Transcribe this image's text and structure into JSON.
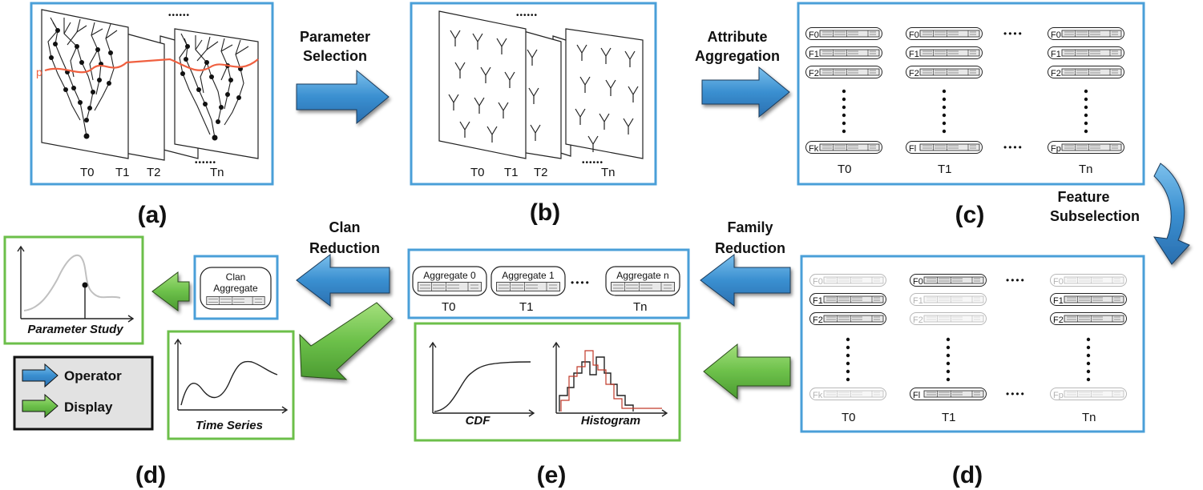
{
  "colors": {
    "operator_border": "#4a9fd8",
    "display_border": "#6cbf4a",
    "operator_arrow": "#3a8fd0",
    "display_arrow": "#6cc04a",
    "faded": "#c2c2c2"
  },
  "panels": {
    "a": {
      "label": "(a)",
      "time_labels": [
        "T0",
        "T1",
        "T2",
        "Tn"
      ],
      "dots": "••••••",
      "param_label": "p"
    },
    "b": {
      "label": "(b)",
      "time_labels": [
        "T0",
        "T1",
        "T2",
        "Tn"
      ],
      "dots": "••••••"
    },
    "c": {
      "label": "(c)",
      "rows_col0": [
        "F0",
        "F1",
        "F2",
        "Fk"
      ],
      "rows_col1": [
        "F0",
        "F1",
        "F2",
        "Fl"
      ],
      "rows_col2": [
        "F0",
        "F1",
        "F2",
        "Fp"
      ],
      "time_labels": [
        "T0",
        "T1",
        "Tn"
      ],
      "dots": "••••"
    },
    "d_right": {
      "label": "(d)",
      "rows_col0": [
        "F0",
        "F1",
        "F2",
        "Fk"
      ],
      "rows_col1": [
        "F0",
        "F1",
        "F2",
        "Fl"
      ],
      "rows_col2": [
        "F0",
        "F1",
        "F2",
        "Fp"
      ],
      "time_labels": [
        "T0",
        "T1",
        "Tn"
      ],
      "dots": "••••"
    },
    "e": {
      "label": "(e)",
      "aggregates": [
        "Aggregate 0",
        "Aggregate 1",
        "Aggregate n"
      ],
      "time_labels": [
        "T0",
        "T1",
        "Tn"
      ],
      "dots": "••••",
      "cdf_label": "CDF",
      "histogram_label": "Histogram"
    },
    "d_left": {
      "label": "(d)",
      "clan_line1": "Clan",
      "clan_line2": "Aggregate",
      "parameter_study": "Parameter Study",
      "time_series": "Time Series"
    }
  },
  "operators": {
    "parameter_selection": [
      "Parameter",
      "Selection"
    ],
    "attribute_aggregation": [
      "Attribute",
      "Aggregation"
    ],
    "feature_subselection": [
      "Feature",
      "Subselection"
    ],
    "family_reduction": [
      "Family",
      "Reduction"
    ],
    "clan_reduction": [
      "Clan",
      "Reduction"
    ]
  },
  "legend": {
    "operator": "Operator",
    "display": "Display"
  }
}
